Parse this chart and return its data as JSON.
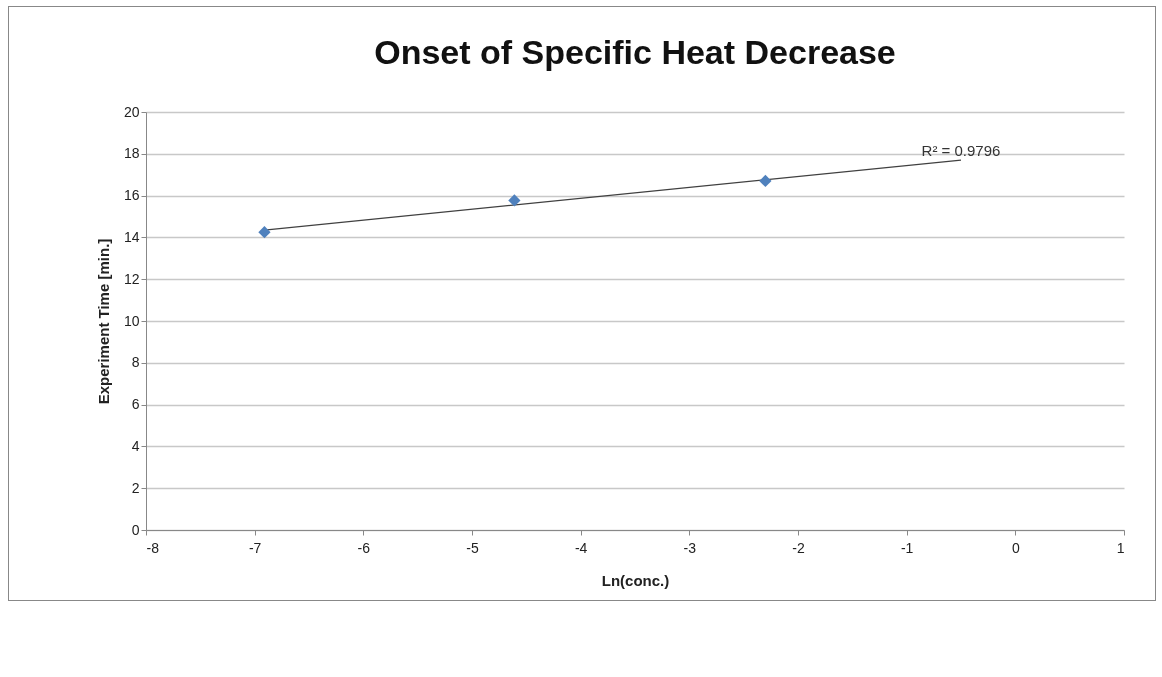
{
  "chart_data": {
    "type": "scatter",
    "title": "Onset of Specific Heat Decrease",
    "xlabel": "Ln(conc.)",
    "ylabel": "Experiment Time [min.]",
    "series": [
      {
        "color": "#4f81bd",
        "marker": "diamond",
        "x": [
          -6.91,
          -4.61,
          -2.3
        ],
        "values": [
          14.25,
          15.77,
          16.7
        ]
      },
      {
        "type": "line",
        "color": "#404040",
        "x": [
          -6.91,
          -0.5
        ],
        "values": [
          14.35,
          17.7
        ]
      }
    ],
    "annotations": [
      "R² = 0.9796"
    ],
    "xlim": [
      -8,
      1
    ],
    "xticks": [
      -8,
      -7,
      -6,
      -5,
      -4,
      -3,
      -2,
      -1,
      0,
      1
    ],
    "ylim": [
      0,
      20
    ],
    "yticks": [
      0,
      2,
      4,
      6,
      8,
      10,
      12,
      14,
      16,
      18,
      20
    ],
    "grid": "y"
  }
}
